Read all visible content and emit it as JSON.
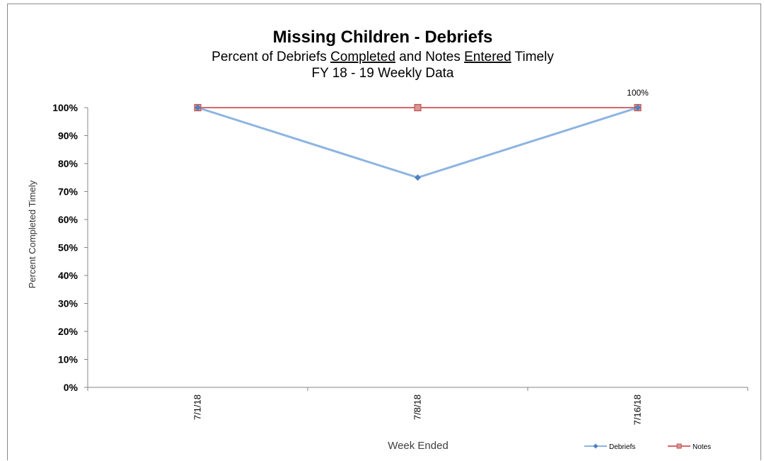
{
  "chart_data": {
    "type": "line",
    "title": "Missing Children - Debriefs",
    "subtitle_parts": [
      {
        "text": "Percent of Debriefs ",
        "u": false
      },
      {
        "text": "Completed",
        "u": true
      },
      {
        "text": " and Notes ",
        "u": false
      },
      {
        "text": "Entered",
        "u": true
      },
      {
        "text": " Timely",
        "u": false
      }
    ],
    "subtitle2": "FY 18 - 19  Weekly Data",
    "categories": [
      "7/1/18",
      "7/8/18",
      "7/16/18"
    ],
    "series": [
      {
        "name": "Debriefs",
        "values": [
          100,
          75,
          100
        ],
        "color": "#8db4e2",
        "marker_color": "#4f81bd",
        "marker": "diamond"
      },
      {
        "name": "Notes",
        "values": [
          100,
          100,
          100
        ],
        "color": "#d9666a",
        "marker_color": "#c0504d",
        "marker": "square"
      }
    ],
    "ylim": [
      0,
      100
    ],
    "yticks": [
      "0%",
      "10%",
      "20%",
      "30%",
      "40%",
      "50%",
      "60%",
      "70%",
      "80%",
      "90%",
      "100%"
    ],
    "ylabel": "Percent Completed Timely",
    "xlabel": "Week Ended",
    "annotations": [
      {
        "category_index": 2,
        "text": "100%"
      }
    ],
    "legend_position": "bottom-right",
    "grid": false
  }
}
